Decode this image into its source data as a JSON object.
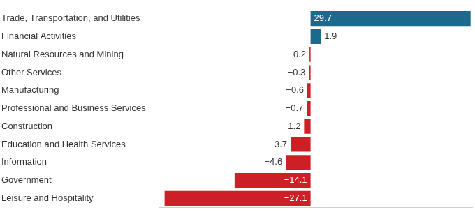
{
  "chart_data": {
    "type": "bar",
    "orientation": "horizontal",
    "categories": [
      "Trade, Transportation, and Utilities",
      "Financial Activities",
      "Natural Resources and Mining",
      "Other Services",
      "Manufacturing",
      "Professional and Business Services",
      "Construction",
      "Education and Health Services",
      "Information",
      "Government",
      "Leisure and Hospitality"
    ],
    "values": [
      29.7,
      1.9,
      -0.2,
      -0.3,
      -0.6,
      -0.7,
      -1.2,
      -3.7,
      -4.6,
      -14.1,
      -27.1
    ],
    "value_labels": [
      "29.7",
      "1.9",
      "−0.2",
      "−0.3",
      "−0.6",
      "−0.7",
      "−1.2",
      "−3.7",
      "−4.6",
      "−14.1",
      "−27.1"
    ],
    "colors": [
      "#1b6a8c",
      "#1b6a8c",
      "#cc2027",
      "#cc2027",
      "#cc2027",
      "#cc2027",
      "#cc2027",
      "#cc2027",
      "#cc2027",
      "#cc2027",
      "#cc2027"
    ],
    "xlim": [
      -28,
      30
    ],
    "grid": false,
    "data_labels": true,
    "tick_labels": "y"
  }
}
